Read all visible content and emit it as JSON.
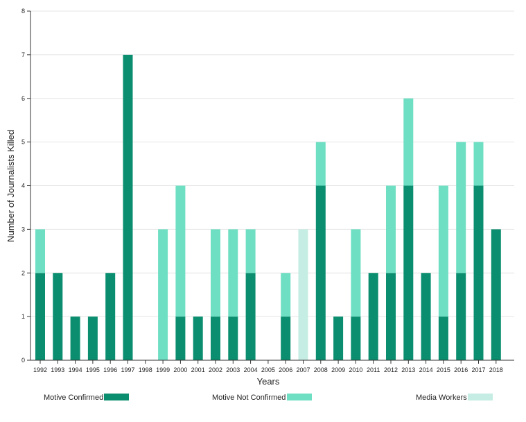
{
  "chart_data": {
    "type": "bar",
    "stacked": true,
    "title": "",
    "xlabel": "Years",
    "ylabel": "Number of Journalists Killed",
    "ylim": [
      0,
      8
    ],
    "yticks": [
      0,
      1,
      2,
      3,
      4,
      5,
      6,
      7,
      8
    ],
    "grid": true,
    "legend_position": "bottom",
    "categories": [
      "1992",
      "1993",
      "1994",
      "1995",
      "1996",
      "1997",
      "1998",
      "1999",
      "2000",
      "2001",
      "2002",
      "2003",
      "2004",
      "2005",
      "2006",
      "2007",
      "2008",
      "2009",
      "2010",
      "2011",
      "2012",
      "2013",
      "2014",
      "2015",
      "2016",
      "2017",
      "2018"
    ],
    "series": [
      {
        "name": "Motive Confirmed",
        "color": "#0a8e6f",
        "values": [
          2,
          2,
          1,
          1,
          2,
          7,
          0,
          0,
          1,
          1,
          1,
          1,
          2,
          0,
          1,
          0,
          4,
          1,
          1,
          2,
          2,
          4,
          2,
          1,
          2,
          4,
          3
        ]
      },
      {
        "name": "Motive Not Confirmed",
        "color": "#6fdfc4",
        "values": [
          1,
          0,
          0,
          0,
          0,
          0,
          0,
          3,
          3,
          0,
          2,
          2,
          1,
          0,
          1,
          0,
          1,
          0,
          2,
          0,
          2,
          2,
          0,
          3,
          3,
          1,
          0
        ]
      },
      {
        "name": "Media Workers",
        "color": "#c6ede3",
        "values": [
          0,
          0,
          0,
          0,
          0,
          0,
          0,
          0,
          0,
          0,
          0,
          0,
          0,
          0,
          0,
          3,
          0,
          0,
          0,
          0,
          0,
          0,
          0,
          0,
          0,
          0,
          0
        ]
      }
    ]
  }
}
